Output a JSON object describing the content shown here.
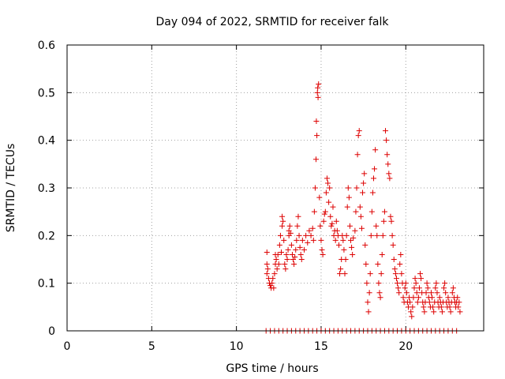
{
  "chart_data": {
    "type": "scatter",
    "title": "Day 094 of 2022, SRMTID for receiver falk",
    "xlabel": "GPS time / hours",
    "ylabel": "SRMTID / TECUs",
    "xlim": [
      0,
      24.6
    ],
    "ylim": [
      0,
      0.6
    ],
    "xticks": [
      0,
      5,
      10,
      15,
      20
    ],
    "xtick_labels": [
      "0",
      "5",
      "10",
      "15",
      "20"
    ],
    "yticks": [
      0,
      0.1,
      0.2,
      0.3,
      0.4,
      0.5,
      0.6
    ],
    "ytick_labels": [
      "0",
      "0.1",
      "0.2",
      "0.3",
      "0.4",
      "0.5",
      "0.6"
    ],
    "grid": true,
    "marker": "+",
    "color": "#dd0000",
    "series": [
      {
        "name": "SRMTID",
        "points": [
          [
            11.8,
            0.165
          ],
          [
            11.8,
            0.14
          ],
          [
            11.8,
            0.12
          ],
          [
            11.85,
            0.13
          ],
          [
            11.9,
            0.11
          ],
          [
            11.95,
            0.1
          ],
          [
            12.0,
            0.095
          ],
          [
            12.05,
            0.09
          ],
          [
            12.1,
            0.1
          ],
          [
            12.15,
            0.11
          ],
          [
            12.2,
            0.09
          ],
          [
            12.25,
            0.12
          ],
          [
            12.3,
            0.14
          ],
          [
            12.3,
            0.16
          ],
          [
            12.35,
            0.15
          ],
          [
            12.4,
            0.13
          ],
          [
            12.45,
            0.16
          ],
          [
            12.5,
            0.14
          ],
          [
            12.55,
            0.18
          ],
          [
            12.6,
            0.2
          ],
          [
            12.65,
            0.165
          ],
          [
            12.7,
            0.24
          ],
          [
            12.7,
            0.22
          ],
          [
            12.75,
            0.23
          ],
          [
            12.8,
            0.19
          ],
          [
            12.85,
            0.14
          ],
          [
            12.9,
            0.13
          ],
          [
            12.95,
            0.16
          ],
          [
            13.0,
            0.15
          ],
          [
            13.05,
            0.17
          ],
          [
            13.1,
            0.21
          ],
          [
            13.1,
            0.2
          ],
          [
            13.15,
            0.22
          ],
          [
            13.2,
            0.205
          ],
          [
            13.25,
            0.18
          ],
          [
            13.3,
            0.16
          ],
          [
            13.35,
            0.15
          ],
          [
            13.4,
            0.14
          ],
          [
            13.45,
            0.155
          ],
          [
            13.5,
            0.17
          ],
          [
            13.55,
            0.19
          ],
          [
            13.6,
            0.22
          ],
          [
            13.65,
            0.24
          ],
          [
            13.7,
            0.2
          ],
          [
            13.75,
            0.175
          ],
          [
            13.8,
            0.16
          ],
          [
            13.85,
            0.15
          ],
          [
            13.9,
            0.19
          ],
          [
            14.0,
            0.17
          ],
          [
            14.1,
            0.2
          ],
          [
            14.2,
            0.185
          ],
          [
            14.3,
            0.21
          ],
          [
            14.4,
            0.2
          ],
          [
            14.5,
            0.215
          ],
          [
            14.55,
            0.19
          ],
          [
            14.6,
            0.25
          ],
          [
            14.65,
            0.3
          ],
          [
            14.7,
            0.36
          ],
          [
            14.72,
            0.44
          ],
          [
            14.75,
            0.41
          ],
          [
            14.78,
            0.5
          ],
          [
            14.8,
            0.51
          ],
          [
            14.82,
            0.49
          ],
          [
            14.85,
            0.518
          ],
          [
            14.9,
            0.28
          ],
          [
            14.95,
            0.22
          ],
          [
            15.0,
            0.19
          ],
          [
            15.05,
            0.17
          ],
          [
            15.1,
            0.16
          ],
          [
            15.15,
            0.23
          ],
          [
            15.2,
            0.245
          ],
          [
            15.25,
            0.25
          ],
          [
            15.3,
            0.29
          ],
          [
            15.35,
            0.32
          ],
          [
            15.4,
            0.31
          ],
          [
            15.45,
            0.27
          ],
          [
            15.5,
            0.3
          ],
          [
            15.55,
            0.24
          ],
          [
            15.6,
            0.22
          ],
          [
            15.65,
            0.225
          ],
          [
            15.7,
            0.26
          ],
          [
            15.75,
            0.2
          ],
          [
            15.8,
            0.21
          ],
          [
            15.85,
            0.19
          ],
          [
            15.9,
            0.23
          ],
          [
            15.95,
            0.21
          ],
          [
            16.0,
            0.2
          ],
          [
            16.05,
            0.18
          ],
          [
            16.1,
            0.12
          ],
          [
            16.15,
            0.13
          ],
          [
            16.2,
            0.15
          ],
          [
            16.25,
            0.2
          ],
          [
            16.3,
            0.19
          ],
          [
            16.35,
            0.17
          ],
          [
            16.4,
            0.12
          ],
          [
            16.45,
            0.15
          ],
          [
            16.5,
            0.2
          ],
          [
            16.55,
            0.26
          ],
          [
            16.6,
            0.3
          ],
          [
            16.65,
            0.28
          ],
          [
            16.7,
            0.22
          ],
          [
            16.75,
            0.19
          ],
          [
            16.8,
            0.175
          ],
          [
            16.85,
            0.16
          ],
          [
            16.9,
            0.195
          ],
          [
            17.0,
            0.21
          ],
          [
            17.05,
            0.25
          ],
          [
            17.1,
            0.3
          ],
          [
            17.15,
            0.37
          ],
          [
            17.2,
            0.41
          ],
          [
            17.25,
            0.42
          ],
          [
            17.3,
            0.26
          ],
          [
            17.35,
            0.24
          ],
          [
            17.4,
            0.215
          ],
          [
            17.45,
            0.29
          ],
          [
            17.5,
            0.31
          ],
          [
            17.55,
            0.33
          ],
          [
            17.6,
            0.18
          ],
          [
            17.65,
            0.14
          ],
          [
            17.7,
            0.1
          ],
          [
            17.75,
            0.06
          ],
          [
            17.8,
            0.04
          ],
          [
            17.85,
            0.08
          ],
          [
            17.9,
            0.12
          ],
          [
            17.95,
            0.2
          ],
          [
            18.0,
            0.25
          ],
          [
            18.05,
            0.29
          ],
          [
            18.1,
            0.32
          ],
          [
            18.15,
            0.34
          ],
          [
            18.2,
            0.38
          ],
          [
            18.25,
            0.22
          ],
          [
            18.3,
            0.2
          ],
          [
            18.35,
            0.14
          ],
          [
            18.4,
            0.1
          ],
          [
            18.45,
            0.08
          ],
          [
            18.5,
            0.07
          ],
          [
            18.55,
            0.12
          ],
          [
            18.6,
            0.16
          ],
          [
            18.65,
            0.2
          ],
          [
            18.7,
            0.23
          ],
          [
            18.75,
            0.25
          ],
          [
            18.8,
            0.42
          ],
          [
            18.85,
            0.4
          ],
          [
            18.9,
            0.37
          ],
          [
            18.95,
            0.35
          ],
          [
            19.0,
            0.33
          ],
          [
            19.05,
            0.32
          ],
          [
            19.1,
            0.24
          ],
          [
            19.15,
            0.23
          ],
          [
            19.2,
            0.2
          ],
          [
            19.25,
            0.18
          ],
          [
            19.3,
            0.15
          ],
          [
            19.35,
            0.13
          ],
          [
            19.4,
            0.12
          ],
          [
            19.45,
            0.11
          ],
          [
            19.5,
            0.1
          ],
          [
            19.55,
            0.09
          ],
          [
            19.6,
            0.08
          ],
          [
            19.65,
            0.14
          ],
          [
            19.7,
            0.16
          ],
          [
            19.75,
            0.12
          ],
          [
            19.8,
            0.1
          ],
          [
            19.85,
            0.07
          ],
          [
            19.9,
            0.06
          ],
          [
            19.95,
            0.09
          ],
          [
            20.0,
            0.1
          ],
          [
            20.05,
            0.08
          ],
          [
            20.1,
            0.06
          ],
          [
            20.15,
            0.05
          ],
          [
            20.2,
            0.07
          ],
          [
            20.25,
            0.06
          ],
          [
            20.3,
            0.04
          ],
          [
            20.35,
            0.03
          ],
          [
            20.4,
            0.05
          ],
          [
            20.45,
            0.07
          ],
          [
            20.5,
            0.09
          ],
          [
            20.55,
            0.11
          ],
          [
            20.6,
            0.1
          ],
          [
            20.65,
            0.08
          ],
          [
            20.7,
            0.06
          ],
          [
            20.75,
            0.07
          ],
          [
            20.8,
            0.09
          ],
          [
            20.85,
            0.12
          ],
          [
            20.9,
            0.11
          ],
          [
            20.95,
            0.08
          ],
          [
            21.0,
            0.06
          ],
          [
            21.05,
            0.05
          ],
          [
            21.1,
            0.04
          ],
          [
            21.15,
            0.06
          ],
          [
            21.2,
            0.08
          ],
          [
            21.25,
            0.1
          ],
          [
            21.3,
            0.09
          ],
          [
            21.35,
            0.07
          ],
          [
            21.4,
            0.06
          ],
          [
            21.45,
            0.05
          ],
          [
            21.5,
            0.08
          ],
          [
            21.55,
            0.07
          ],
          [
            21.6,
            0.05
          ],
          [
            21.65,
            0.04
          ],
          [
            21.7,
            0.06
          ],
          [
            21.75,
            0.09
          ],
          [
            21.8,
            0.1
          ],
          [
            21.85,
            0.08
          ],
          [
            21.9,
            0.06
          ],
          [
            21.95,
            0.05
          ],
          [
            22.0,
            0.07
          ],
          [
            22.05,
            0.06
          ],
          [
            22.1,
            0.05
          ],
          [
            22.15,
            0.04
          ],
          [
            22.2,
            0.06
          ],
          [
            22.25,
            0.09
          ],
          [
            22.3,
            0.1
          ],
          [
            22.35,
            0.08
          ],
          [
            22.4,
            0.06
          ],
          [
            22.45,
            0.05
          ],
          [
            22.5,
            0.07
          ],
          [
            22.55,
            0.06
          ],
          [
            22.6,
            0.05
          ],
          [
            22.65,
            0.04
          ],
          [
            22.7,
            0.06
          ],
          [
            22.75,
            0.08
          ],
          [
            22.8,
            0.09
          ],
          [
            22.85,
            0.07
          ],
          [
            22.9,
            0.06
          ],
          [
            22.95,
            0.05
          ],
          [
            23.0,
            0.06
          ],
          [
            23.05,
            0.07
          ],
          [
            23.1,
            0.05
          ],
          [
            23.15,
            0.06
          ],
          [
            23.2,
            0.04
          ],
          [
            11.75,
            0
          ],
          [
            12.0,
            0
          ],
          [
            12.25,
            0
          ],
          [
            12.5,
            0
          ],
          [
            12.75,
            0
          ],
          [
            13.0,
            0
          ],
          [
            13.25,
            0
          ],
          [
            13.5,
            0
          ],
          [
            13.75,
            0
          ],
          [
            14.0,
            0
          ],
          [
            14.25,
            0
          ],
          [
            14.5,
            0
          ],
          [
            14.75,
            0
          ],
          [
            15.0,
            0
          ],
          [
            15.25,
            0
          ],
          [
            15.5,
            0
          ],
          [
            15.75,
            0
          ],
          [
            16.0,
            0
          ],
          [
            16.25,
            0
          ],
          [
            16.5,
            0
          ],
          [
            16.75,
            0
          ],
          [
            17.0,
            0
          ],
          [
            17.25,
            0
          ],
          [
            17.5,
            0
          ],
          [
            17.75,
            0
          ],
          [
            18.0,
            0
          ],
          [
            18.25,
            0
          ],
          [
            18.5,
            0
          ],
          [
            18.75,
            0
          ],
          [
            19.0,
            0
          ],
          [
            19.25,
            0
          ],
          [
            19.5,
            0
          ],
          [
            19.75,
            0
          ],
          [
            20.0,
            0
          ],
          [
            20.25,
            0
          ],
          [
            20.5,
            0
          ],
          [
            20.75,
            0
          ],
          [
            21.0,
            0
          ],
          [
            21.25,
            0
          ],
          [
            21.5,
            0
          ],
          [
            21.75,
            0
          ],
          [
            22.0,
            0
          ],
          [
            22.25,
            0
          ],
          [
            22.5,
            0
          ],
          [
            22.75,
            0
          ],
          [
            23.0,
            0
          ]
        ]
      }
    ]
  }
}
